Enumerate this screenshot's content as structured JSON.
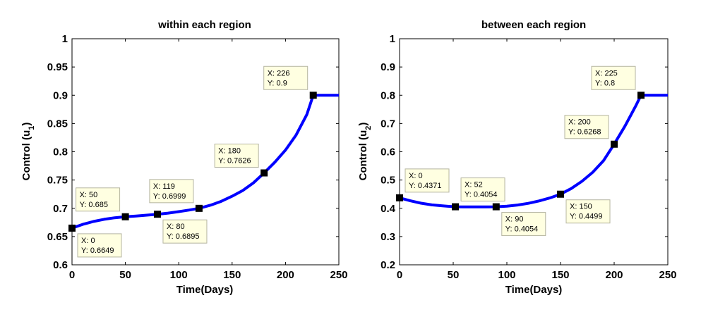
{
  "colors": {
    "line": "#0000ff",
    "marker": "#000000",
    "tooltip_bg": "#ffffe1",
    "tooltip_border": "#b4b4a0",
    "axes": "#000000"
  },
  "chart_data": [
    {
      "type": "line",
      "title": "within each region",
      "xlabel": "Time(Days)",
      "ylabel": "Control (u",
      "ylabel_sub": "1",
      "ylabel_close": ")",
      "xlim": [
        0,
        250
      ],
      "ylim": [
        0.6,
        1
      ],
      "xticks": [
        0,
        50,
        100,
        150,
        200,
        250
      ],
      "xtick_labels": [
        "0",
        "50",
        "100",
        "150",
        "200",
        "250"
      ],
      "yticks": [
        0.6,
        0.65,
        0.7,
        0.75,
        0.8,
        0.85,
        0.9,
        0.95,
        1
      ],
      "ytick_labels": [
        "0.6",
        "0.65",
        "0.7",
        "0.75",
        "0.8",
        "0.85",
        "0.9",
        "0.95",
        "1"
      ],
      "grid": false,
      "series": [
        {
          "x": [
            0,
            10,
            20,
            30,
            40,
            50,
            60,
            70,
            80,
            90,
            100,
            110,
            119,
            130,
            140,
            150,
            160,
            170,
            180,
            190,
            200,
            210,
            220,
            226,
            230,
            240,
            250
          ],
          "y": [
            0.6649,
            0.6715,
            0.6766,
            0.6805,
            0.6832,
            0.685,
            0.6864,
            0.6878,
            0.6895,
            0.6915,
            0.6941,
            0.6969,
            0.6999,
            0.7057,
            0.7125,
            0.7214,
            0.7315,
            0.745,
            0.7626,
            0.7815,
            0.803,
            0.8298,
            0.8658,
            0.9,
            0.9,
            0.9,
            0.9
          ]
        }
      ],
      "datatips": [
        {
          "x": 0,
          "y": 0.6649,
          "x_text": "X: 0",
          "y_text": "Y: 0.6649",
          "pos": "below-right"
        },
        {
          "x": 50,
          "y": 0.685,
          "x_text": "X: 50",
          "y_text": "Y: 0.685",
          "pos": "above-left"
        },
        {
          "x": 80,
          "y": 0.6895,
          "x_text": "X: 80",
          "y_text": "Y: 0.6895",
          "pos": "below-right"
        },
        {
          "x": 119,
          "y": 0.6999,
          "x_text": "X: 119",
          "y_text": "Y: 0.6999",
          "pos": "above-left"
        },
        {
          "x": 180,
          "y": 0.7626,
          "x_text": "X: 180",
          "y_text": "Y: 0.7626",
          "pos": "above-left"
        },
        {
          "x": 226,
          "y": 0.9,
          "x_text": "X: 226",
          "y_text": "Y: 0.9",
          "pos": "above-left"
        }
      ]
    },
    {
      "type": "line",
      "title": "between each region",
      "xlabel": "Time(Days)",
      "ylabel": "Control (u",
      "ylabel_sub": "2",
      "ylabel_close": ")",
      "xlim": [
        0,
        250
      ],
      "ylim": [
        0.2,
        1
      ],
      "xticks": [
        0,
        50,
        100,
        150,
        200,
        250
      ],
      "xtick_labels": [
        "0",
        "50",
        "100",
        "150",
        "200",
        "250"
      ],
      "yticks": [
        0.2,
        0.3,
        0.4,
        0.5,
        0.6,
        0.7,
        0.8,
        0.9,
        1
      ],
      "ytick_labels": [
        "0.2",
        "0.3",
        "0.4",
        "0.5",
        "0.6",
        "0.7",
        "0.8",
        "0.9",
        "1"
      ],
      "grid": false,
      "series": [
        {
          "x": [
            0,
            10,
            20,
            30,
            40,
            52,
            60,
            70,
            80,
            90,
            100,
            110,
            120,
            130,
            140,
            150,
            160,
            170,
            180,
            190,
            200,
            210,
            220,
            225,
            230,
            240,
            250
          ],
          "y": [
            0.4371,
            0.4265,
            0.418,
            0.4122,
            0.4085,
            0.4054,
            0.405,
            0.4048,
            0.405,
            0.4054,
            0.4075,
            0.4115,
            0.4175,
            0.426,
            0.4365,
            0.4499,
            0.47,
            0.4955,
            0.5275,
            0.568,
            0.6268,
            0.6905,
            0.7615,
            0.8,
            0.8,
            0.8,
            0.8
          ]
        }
      ],
      "datatips": [
        {
          "x": 0,
          "y": 0.4371,
          "x_text": "X: 0",
          "y_text": "Y: 0.4371",
          "pos": "above-right"
        },
        {
          "x": 52,
          "y": 0.4054,
          "x_text": "X: 52",
          "y_text": "Y: 0.4054",
          "pos": "above-right"
        },
        {
          "x": 90,
          "y": 0.4054,
          "x_text": "X: 90",
          "y_text": "Y: 0.4054",
          "pos": "below-right"
        },
        {
          "x": 150,
          "y": 0.4499,
          "x_text": "X: 150",
          "y_text": "Y: 0.4499",
          "pos": "below-right"
        },
        {
          "x": 200,
          "y": 0.6268,
          "x_text": "X: 200",
          "y_text": "Y: 0.6268",
          "pos": "above-left"
        },
        {
          "x": 225,
          "y": 0.8,
          "x_text": "X: 225",
          "y_text": "Y: 0.8",
          "pos": "above-left"
        }
      ]
    }
  ]
}
